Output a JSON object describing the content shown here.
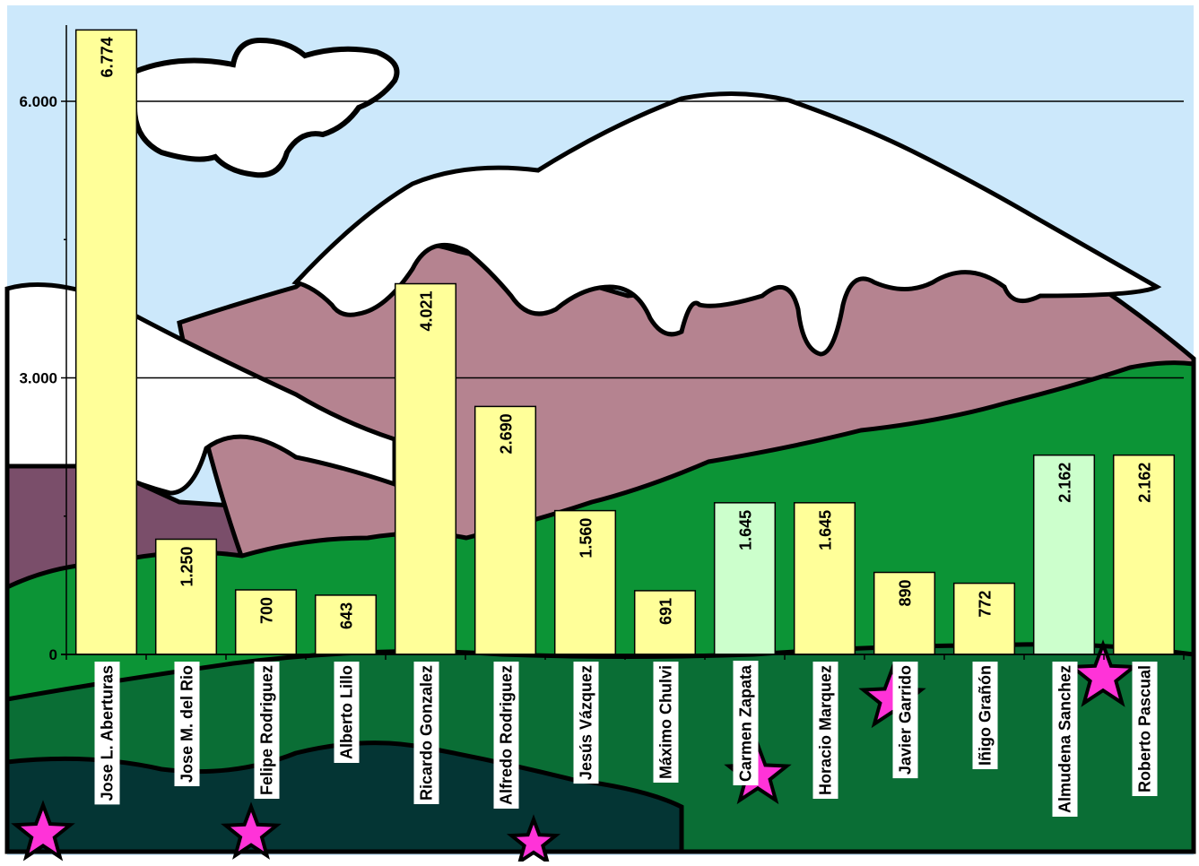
{
  "chart_data": {
    "type": "bar",
    "title": "",
    "xlabel": "",
    "ylabel": "",
    "ylim": [
      0,
      6774
    ],
    "y_ticks": [
      {
        "value": 0,
        "label": "0"
      },
      {
        "value": 3000,
        "label": "3.000"
      },
      {
        "value": 6000,
        "label": "6.000"
      }
    ],
    "grid": true,
    "legend": "none",
    "categories": [
      "Jose L. Aberturas",
      "Jose M. del Rio",
      "Felipe Rodriguez",
      "Alberto Lillo",
      "Ricardo Gonzalez",
      "Alfredo Rodriguez",
      "Jesús Vázquez",
      "Máximo Chulvi",
      "Carmen Zapata",
      "Horacio Marquez",
      "Javier Garrido",
      "Iñigo Grañón",
      "Almudena Sanchez",
      "Roberto Pascual"
    ],
    "values": [
      6774,
      1250,
      700,
      643,
      4021,
      2690,
      1560,
      691,
      1645,
      1645,
      890,
      772,
      2162,
      2162
    ],
    "value_labels": [
      "6.774",
      "1.250",
      "700",
      "643",
      "4.021",
      "2.690",
      "1.560",
      "691",
      "1.645",
      "1.645",
      "890",
      "772",
      "2.162",
      "2.162"
    ],
    "bar_colors": [
      "#ffff99",
      "#ffff99",
      "#ffff99",
      "#ffff99",
      "#ffff99",
      "#ffff99",
      "#ffff99",
      "#ffff99",
      "#ccffcc",
      "#ffff99",
      "#ffff99",
      "#ffff99",
      "#ccffcc",
      "#ffff99"
    ]
  },
  "colors": {
    "sky": "#cce8fb",
    "snow": "#ffffff",
    "mauve": "#b58390",
    "dark_mauve": "#7a4e6a",
    "green": "#0c9436",
    "dark_green": "#0a6e35",
    "teal": "#043534",
    "pink": "#ff33d8",
    "outline": "#000000"
  }
}
